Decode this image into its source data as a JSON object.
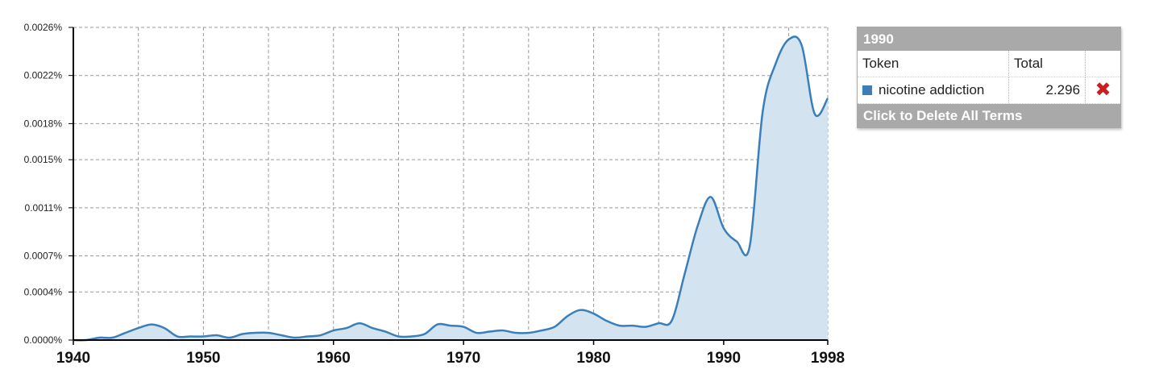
{
  "chart_data": {
    "type": "area",
    "series_color": "#3a7fba",
    "fill_color": "#d3e3ef",
    "y_tick_labels": [
      "0.0000%",
      "0.0004%",
      "0.0007%",
      "0.0011%",
      "0.0015%",
      "0.0018%",
      "0.0022%",
      "0.0026%"
    ],
    "y_tick_values": [
      0.0,
      0.0004,
      0.0007,
      0.0011,
      0.0015,
      0.0018,
      0.0022,
      0.0026
    ],
    "ylim": [
      0.0,
      0.0026
    ],
    "x_tick_labels": [
      "1940",
      "1950",
      "1960",
      "1970",
      "1980",
      "1990",
      "1998"
    ],
    "x_tick_values": [
      1940,
      1950,
      1960,
      1970,
      1980,
      1990,
      1998
    ],
    "xlim": [
      1940,
      1998
    ],
    "grid": true,
    "x": [
      1940,
      1941,
      1942,
      1943,
      1944,
      1945,
      1946,
      1947,
      1948,
      1949,
      1950,
      1951,
      1952,
      1953,
      1954,
      1955,
      1956,
      1957,
      1958,
      1959,
      1960,
      1961,
      1962,
      1963,
      1964,
      1965,
      1966,
      1967,
      1968,
      1969,
      1970,
      1971,
      1972,
      1973,
      1974,
      1975,
      1976,
      1977,
      1978,
      1979,
      1980,
      1981,
      1982,
      1983,
      1984,
      1985,
      1986,
      1987,
      1988,
      1989,
      1990,
      1991,
      1992,
      1993,
      1994,
      1995,
      1996,
      1997,
      1998
    ],
    "series": [
      {
        "name": "nicotine addiction",
        "values": [
          0.0,
          0.0,
          2e-05,
          2e-05,
          6e-05,
          0.0001,
          0.00013,
          0.0001,
          3e-05,
          3e-05,
          3e-05,
          4e-05,
          2e-05,
          5e-05,
          6e-05,
          6e-05,
          4e-05,
          2e-05,
          3e-05,
          4e-05,
          8e-05,
          0.0001,
          0.00014,
          0.0001,
          7e-05,
          3e-05,
          3e-05,
          5e-05,
          0.00013,
          0.00012,
          0.00011,
          6e-05,
          7e-05,
          8e-05,
          6e-05,
          6e-05,
          8e-05,
          0.00011,
          0.0002,
          0.00025,
          0.00022,
          0.00016,
          0.00012,
          0.00012,
          0.00011,
          0.00014,
          0.00016,
          0.00055,
          0.00095,
          0.00119,
          0.00093,
          0.00082,
          0.00078,
          0.0019,
          0.0023,
          0.0025,
          0.00245,
          0.00188,
          0.00201
        ]
      }
    ]
  },
  "legend": {
    "year": "1990",
    "col_token": "Token",
    "col_total": "Total",
    "rows": [
      {
        "token": "nicotine addiction",
        "total": "2.296",
        "color": "#3a7fba"
      }
    ],
    "delete_icon": "×-delete-icon",
    "delete_glyph": "✖",
    "footer": "Click to Delete All Terms"
  }
}
